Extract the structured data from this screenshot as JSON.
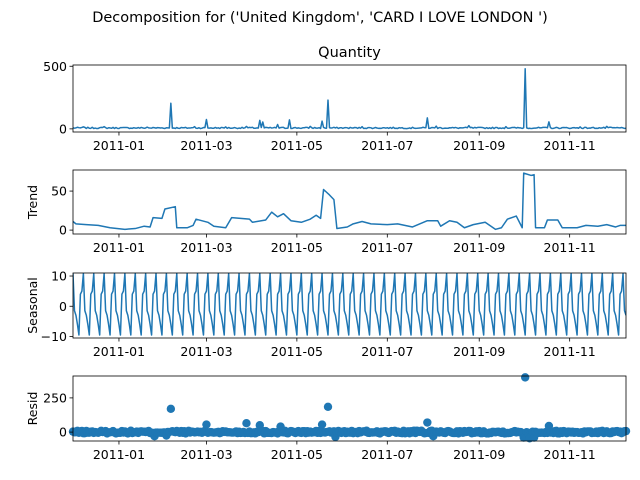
{
  "figure_title": "Decomposition for ('United Kingdom', 'CARD I LOVE LONDON ')",
  "series_color": "#1f77b4",
  "chart_data": [
    {
      "type": "line",
      "title": "Quantity",
      "ylabel": "",
      "xlim": [
        "2010-12-01",
        "2011-12-09"
      ],
      "ylim": [
        -25,
        510
      ],
      "yticks": [
        0,
        500
      ],
      "xticks": [
        "2011-01",
        "2011-03",
        "2011-05",
        "2011-07",
        "2011-09",
        "2011-11"
      ],
      "baseline": 8,
      "spikes": [
        [
          "2010-12-08",
          16
        ],
        [
          "2010-12-22",
          18
        ],
        [
          "2011-01-20",
          14
        ],
        [
          "2011-02-05",
          205
        ],
        [
          "2011-02-21",
          18
        ],
        [
          "2011-03-01",
          75
        ],
        [
          "2011-03-14",
          16
        ],
        [
          "2011-03-28",
          20
        ],
        [
          "2011-04-06",
          68
        ],
        [
          "2011-04-08",
          55
        ],
        [
          "2011-04-18",
          35
        ],
        [
          "2011-04-26",
          72
        ],
        [
          "2011-05-10",
          20
        ],
        [
          "2011-05-18",
          62
        ],
        [
          "2011-05-22",
          230
        ],
        [
          "2011-06-14",
          18
        ],
        [
          "2011-07-28",
          88
        ],
        [
          "2011-08-03",
          22
        ],
        [
          "2011-08-25",
          26
        ],
        [
          "2011-09-19",
          18
        ],
        [
          "2011-10-02",
          480
        ],
        [
          "2011-10-18",
          56
        ],
        [
          "2011-11-08",
          16
        ],
        [
          "2011-11-26",
          20
        ]
      ]
    },
    {
      "type": "line",
      "title": "",
      "ylabel": "Trend",
      "xlim": [
        "2010-12-01",
        "2011-12-09"
      ],
      "ylim": [
        -5,
        77
      ],
      "yticks": [
        0,
        50
      ],
      "xticks": [
        "2011-01",
        "2011-03",
        "2011-05",
        "2011-07",
        "2011-09",
        "2011-11"
      ],
      "points": [
        [
          "2010-12-01",
          11
        ],
        [
          "2010-12-03",
          8
        ],
        [
          "2010-12-10",
          7
        ],
        [
          "2010-12-18",
          6
        ],
        [
          "2010-12-26",
          3
        ],
        [
          "2011-01-05",
          1
        ],
        [
          "2011-01-12",
          2
        ],
        [
          "2011-01-18",
          5
        ],
        [
          "2011-01-22",
          4
        ],
        [
          "2011-01-24",
          16
        ],
        [
          "2011-01-30",
          15
        ],
        [
          "2011-02-01",
          27
        ],
        [
          "2011-02-08",
          30
        ],
        [
          "2011-02-09",
          3
        ],
        [
          "2011-02-16",
          3
        ],
        [
          "2011-02-20",
          6
        ],
        [
          "2011-02-22",
          14
        ],
        [
          "2011-03-02",
          10
        ],
        [
          "2011-03-06",
          5
        ],
        [
          "2011-03-14",
          3
        ],
        [
          "2011-03-18",
          16
        ],
        [
          "2011-03-30",
          14
        ],
        [
          "2011-04-01",
          10
        ],
        [
          "2011-04-10",
          13
        ],
        [
          "2011-04-14",
          23
        ],
        [
          "2011-04-18",
          17
        ],
        [
          "2011-04-22",
          21
        ],
        [
          "2011-04-27",
          12
        ],
        [
          "2011-05-04",
          10
        ],
        [
          "2011-05-10",
          14
        ],
        [
          "2011-05-14",
          19
        ],
        [
          "2011-05-17",
          15
        ],
        [
          "2011-05-19",
          52
        ],
        [
          "2011-05-23",
          45
        ],
        [
          "2011-05-26",
          39
        ],
        [
          "2011-05-28",
          2
        ],
        [
          "2011-06-04",
          4
        ],
        [
          "2011-06-08",
          8
        ],
        [
          "2011-06-14",
          11
        ],
        [
          "2011-06-20",
          8
        ],
        [
          "2011-07-01",
          7
        ],
        [
          "2011-07-08",
          8
        ],
        [
          "2011-07-18",
          4
        ],
        [
          "2011-07-28",
          12
        ],
        [
          "2011-08-04",
          12
        ],
        [
          "2011-08-06",
          5
        ],
        [
          "2011-08-12",
          12
        ],
        [
          "2011-08-17",
          10
        ],
        [
          "2011-08-22",
          3
        ],
        [
          "2011-08-28",
          7
        ],
        [
          "2011-09-05",
          10
        ],
        [
          "2011-09-12",
          1
        ],
        [
          "2011-09-16",
          3
        ],
        [
          "2011-09-20",
          14
        ],
        [
          "2011-09-26",
          18
        ],
        [
          "2011-09-30",
          3
        ],
        [
          "2011-10-01",
          73
        ],
        [
          "2011-10-06",
          70
        ],
        [
          "2011-10-08",
          71
        ],
        [
          "2011-10-09",
          3
        ],
        [
          "2011-10-15",
          3
        ],
        [
          "2011-10-17",
          13
        ],
        [
          "2011-10-24",
          13
        ],
        [
          "2011-10-27",
          3
        ],
        [
          "2011-11-06",
          3
        ],
        [
          "2011-11-12",
          6
        ],
        [
          "2011-11-20",
          5
        ],
        [
          "2011-11-26",
          7
        ],
        [
          "2011-12-02",
          4
        ],
        [
          "2011-12-05",
          6
        ],
        [
          "2011-12-09",
          6
        ]
      ]
    },
    {
      "type": "line",
      "title": "",
      "ylabel": "Seasonal",
      "xlim": [
        "2010-12-01",
        "2011-12-09"
      ],
      "ylim": [
        -10.5,
        11
      ],
      "yticks": [
        -10,
        0,
        10
      ],
      "xticks": [
        "2011-01",
        "2011-03",
        "2011-05",
        "2011-07",
        "2011-09",
        "2011-11"
      ],
      "period_days": 7,
      "cycle": [
        10.8,
        -1.5,
        -3,
        -6,
        -9.5,
        4,
        5
      ]
    },
    {
      "type": "scatter",
      "title": "",
      "ylabel": "Resid",
      "xlim": [
        "2010-12-01",
        "2011-12-09"
      ],
      "ylim": [
        -65,
        410
      ],
      "yticks": [
        0,
        250
      ],
      "xticks": [
        "2011-01",
        "2011-03",
        "2011-05",
        "2011-07",
        "2011-09",
        "2011-11"
      ],
      "noise_amplitude": 10,
      "outliers": [
        [
          "2011-02-05",
          170
        ],
        [
          "2011-03-01",
          55
        ],
        [
          "2011-03-28",
          65
        ],
        [
          "2011-04-06",
          50
        ],
        [
          "2011-04-20",
          40
        ],
        [
          "2011-05-18",
          55
        ],
        [
          "2011-05-22",
          185
        ],
        [
          "2011-05-27",
          -35
        ],
        [
          "2011-07-28",
          70
        ],
        [
          "2011-08-01",
          -30
        ],
        [
          "2011-10-01",
          -40
        ],
        [
          "2011-10-02",
          400
        ],
        [
          "2011-10-05",
          -45
        ],
        [
          "2011-10-08",
          -40
        ],
        [
          "2011-10-18",
          45
        ],
        [
          "2011-01-25",
          -30
        ],
        [
          "2011-02-02",
          -25
        ]
      ]
    }
  ]
}
